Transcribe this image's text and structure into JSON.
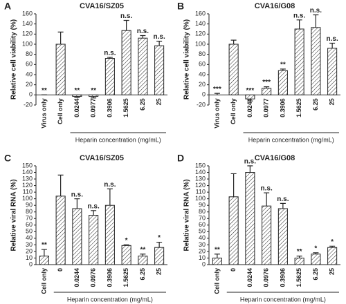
{
  "chart_data": [
    {
      "type": "bar",
      "panel": "A",
      "title": "CVA16/SZ05",
      "ylabel": "Relative cell viability (%)",
      "xlabel": "Heparin concentration (mg/mL)",
      "categories": [
        "Virus only",
        "Cell only",
        "0.0244",
        "0.0977",
        "0.3906",
        "1.5625",
        "6.25",
        "25"
      ],
      "values": [
        0,
        100,
        -3,
        -3,
        72,
        127,
        112,
        97
      ],
      "errors": [
        0,
        24,
        2,
        3,
        2,
        20,
        5,
        9
      ],
      "annotations": [
        "**",
        null,
        "**",
        "**",
        "n.s.",
        "n.s.",
        "n.s.",
        "n.s."
      ],
      "ylim": [
        -20,
        160
      ],
      "yticks": [
        -20,
        0,
        20,
        40,
        60,
        80,
        100,
        120,
        140,
        160
      ],
      "color": "#222222"
    },
    {
      "type": "bar",
      "panel": "B",
      "title": "CVA16/G08",
      "ylabel": "Relative cell viability (%)",
      "xlabel": "Heparin concentration (mg/mL)",
      "categories": [
        "Virus only",
        "Cell only",
        "0.0244",
        "0.0977",
        "0.3906",
        "1.5625",
        "6.25",
        "25"
      ],
      "values": [
        0,
        100,
        -8,
        13,
        48,
        130,
        133,
        92
      ],
      "errors": [
        3,
        8,
        4,
        3,
        3,
        18,
        25,
        10
      ],
      "annotations": [
        "***",
        null,
        "***",
        "***",
        "**",
        "n.s.",
        "n.s.",
        "n.s."
      ],
      "ylim": [
        -20,
        160
      ],
      "yticks": [
        -20,
        0,
        20,
        40,
        60,
        80,
        100,
        120,
        140,
        160
      ],
      "color": "#222222"
    },
    {
      "type": "bar",
      "panel": "C",
      "title": "CVA16/SZ05",
      "ylabel": "Relative viral RNA (%)",
      "xlabel": "Heparin concentration (mg/mL)",
      "categories": [
        "Cell only",
        "0",
        "0.0244",
        "0.0976",
        "0.3906",
        "1.5625",
        "6.25",
        "25"
      ],
      "values": [
        13,
        104,
        85,
        75,
        90,
        29,
        13,
        26
      ],
      "errors": [
        10,
        32,
        15,
        7,
        25,
        1,
        3,
        8
      ],
      "annotations": [
        "**",
        null,
        "n.s.",
        "n.s.",
        "n.s.",
        "*",
        "**",
        "*"
      ],
      "ylim": [
        0,
        150
      ],
      "yticks": [
        0,
        10,
        20,
        30,
        40,
        50,
        60,
        70,
        80,
        90,
        100,
        110,
        120,
        130,
        140,
        150
      ],
      "color": "#222222"
    },
    {
      "type": "bar",
      "panel": "D",
      "title": "CVA16/G08",
      "ylabel": "Relative viral RNA (%)",
      "xlabel": "Heparin concentration (mg/mL)",
      "categories": [
        "Cell only",
        "0",
        "0.0244",
        "0.0976",
        "0.3906",
        "1.5625",
        "6.25",
        "25"
      ],
      "values": [
        10,
        103,
        140,
        89,
        85,
        10,
        16,
        26
      ],
      "errors": [
        6,
        35,
        10,
        20,
        8,
        3,
        2,
        2
      ],
      "annotations": [
        "**",
        null,
        "n.s.",
        "n.s.",
        "n.s.",
        "**",
        "*",
        "*"
      ],
      "ylim": [
        0,
        150
      ],
      "yticks": [
        0,
        10,
        20,
        30,
        40,
        50,
        60,
        70,
        80,
        90,
        100,
        110,
        120,
        130,
        140,
        150
      ],
      "color": "#222222"
    }
  ]
}
